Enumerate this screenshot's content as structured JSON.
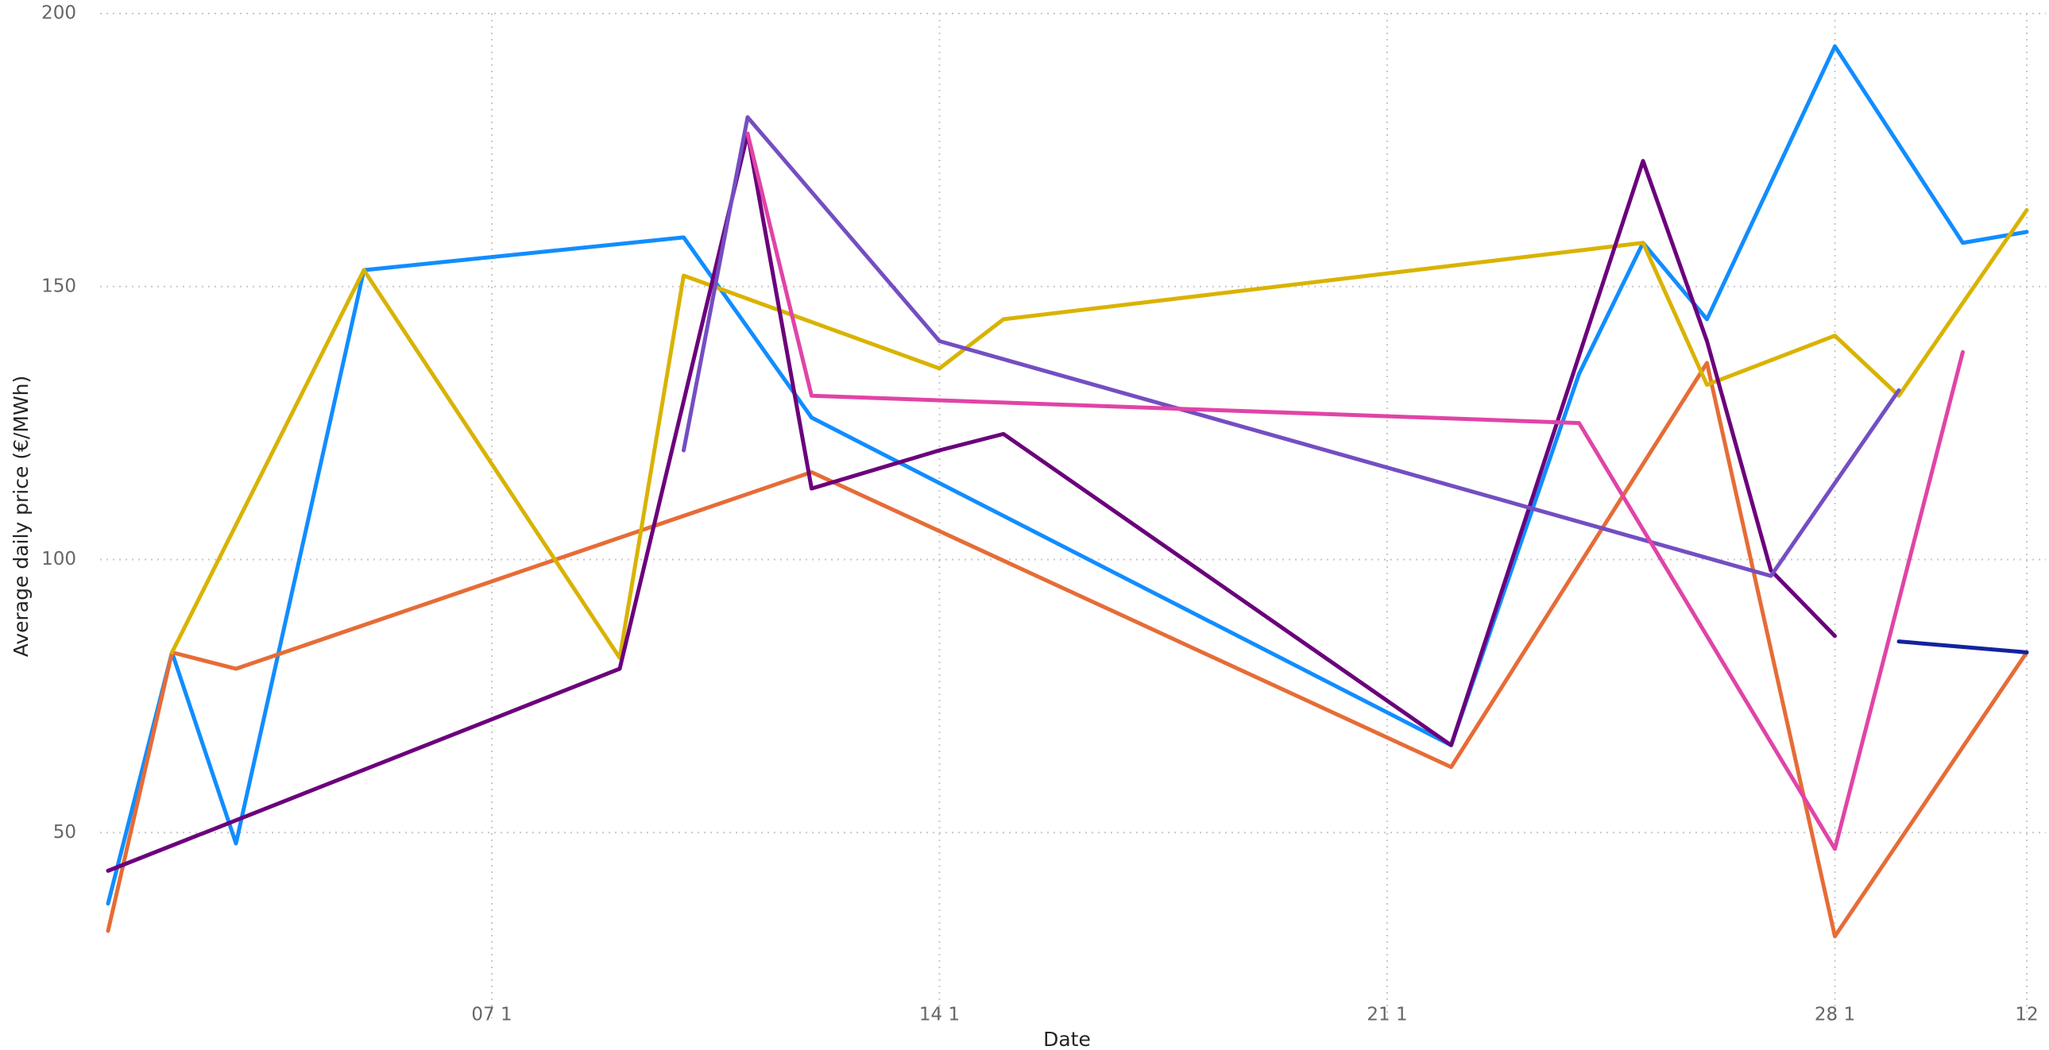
{
  "chart_data": {
    "type": "line",
    "x_label": "Date",
    "y_label": "Average daily price (€/MWh)",
    "xlim": [
      1,
      31
    ],
    "ylim": [
      16,
      200
    ],
    "xticks": [
      {
        "value": 7,
        "label": "07 1"
      },
      {
        "value": 14,
        "label": "14 1"
      },
      {
        "value": 21,
        "label": "21 1"
      },
      {
        "value": 28,
        "label": "28 1"
      },
      {
        "value": 31,
        "label": "12"
      }
    ],
    "yticks": [
      50,
      100,
      150,
      200
    ],
    "grid": true,
    "series": [
      {
        "color": "#118dff",
        "x": [
          1,
          2,
          3,
          5,
          10,
          12,
          22,
          24,
          25,
          26,
          28,
          30,
          31
        ],
        "values": [
          37,
          83,
          48,
          153,
          159,
          126,
          66,
          134,
          158,
          144,
          194,
          158,
          160
        ]
      },
      {
        "color": "#e66c37",
        "x": [
          1,
          2,
          3,
          12,
          22,
          26,
          28,
          31
        ],
        "values": [
          32,
          83,
          80,
          116,
          62,
          136,
          31,
          83
        ]
      },
      {
        "color": "#d9b300",
        "x": [
          2,
          5,
          9,
          10,
          14,
          15,
          25,
          26,
          28,
          29,
          31
        ],
        "values": [
          83,
          153,
          82,
          152,
          135,
          144,
          158,
          132,
          141,
          130,
          164
        ]
      },
      {
        "color": "#6b007b",
        "x": [
          1,
          9,
          11,
          12,
          14,
          15,
          22,
          25,
          26,
          27,
          28
        ],
        "values": [
          43,
          80,
          178,
          113,
          120,
          123,
          66,
          173,
          140,
          98,
          86
        ]
      },
      {
        "color": "#744ec2",
        "x": [
          10,
          11,
          14,
          27,
          29
        ],
        "values": [
          120,
          181,
          140,
          97,
          131
        ]
      },
      {
        "color": "#e044a7",
        "x": [
          11,
          12,
          24,
          28,
          30
        ],
        "values": [
          178,
          130,
          125,
          47,
          138
        ]
      },
      {
        "color": "#12239e",
        "x": [
          29,
          31
        ],
        "values": [
          85,
          83
        ]
      }
    ]
  }
}
